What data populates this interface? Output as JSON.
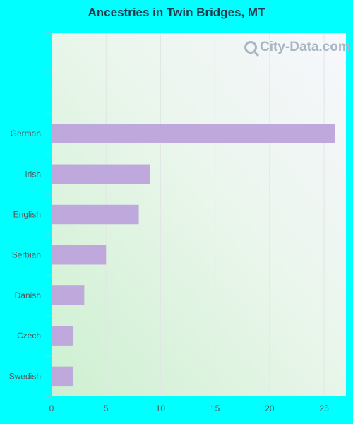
{
  "title": "Ancestries in Twin Bridges, MT",
  "watermark": "City-Data.com",
  "colors": {
    "background": "#00ffff",
    "bar": "#bfa8dc",
    "title": "#1f3b4d",
    "tick_label": "#555555"
  },
  "chart_data": {
    "type": "bar",
    "orientation": "horizontal",
    "title": "Ancestries in Twin Bridges, MT",
    "categories": [
      "German",
      "Irish",
      "English",
      "Serbian",
      "Danish",
      "Czech",
      "Swedish"
    ],
    "values": [
      26,
      9,
      8,
      5,
      3,
      2,
      2
    ],
    "xlim": [
      0,
      27
    ],
    "xticks": [
      0,
      5,
      10,
      15,
      20,
      25
    ],
    "xlabel": "",
    "ylabel": "",
    "empty_top_slots": 2,
    "grid": "vertical"
  }
}
